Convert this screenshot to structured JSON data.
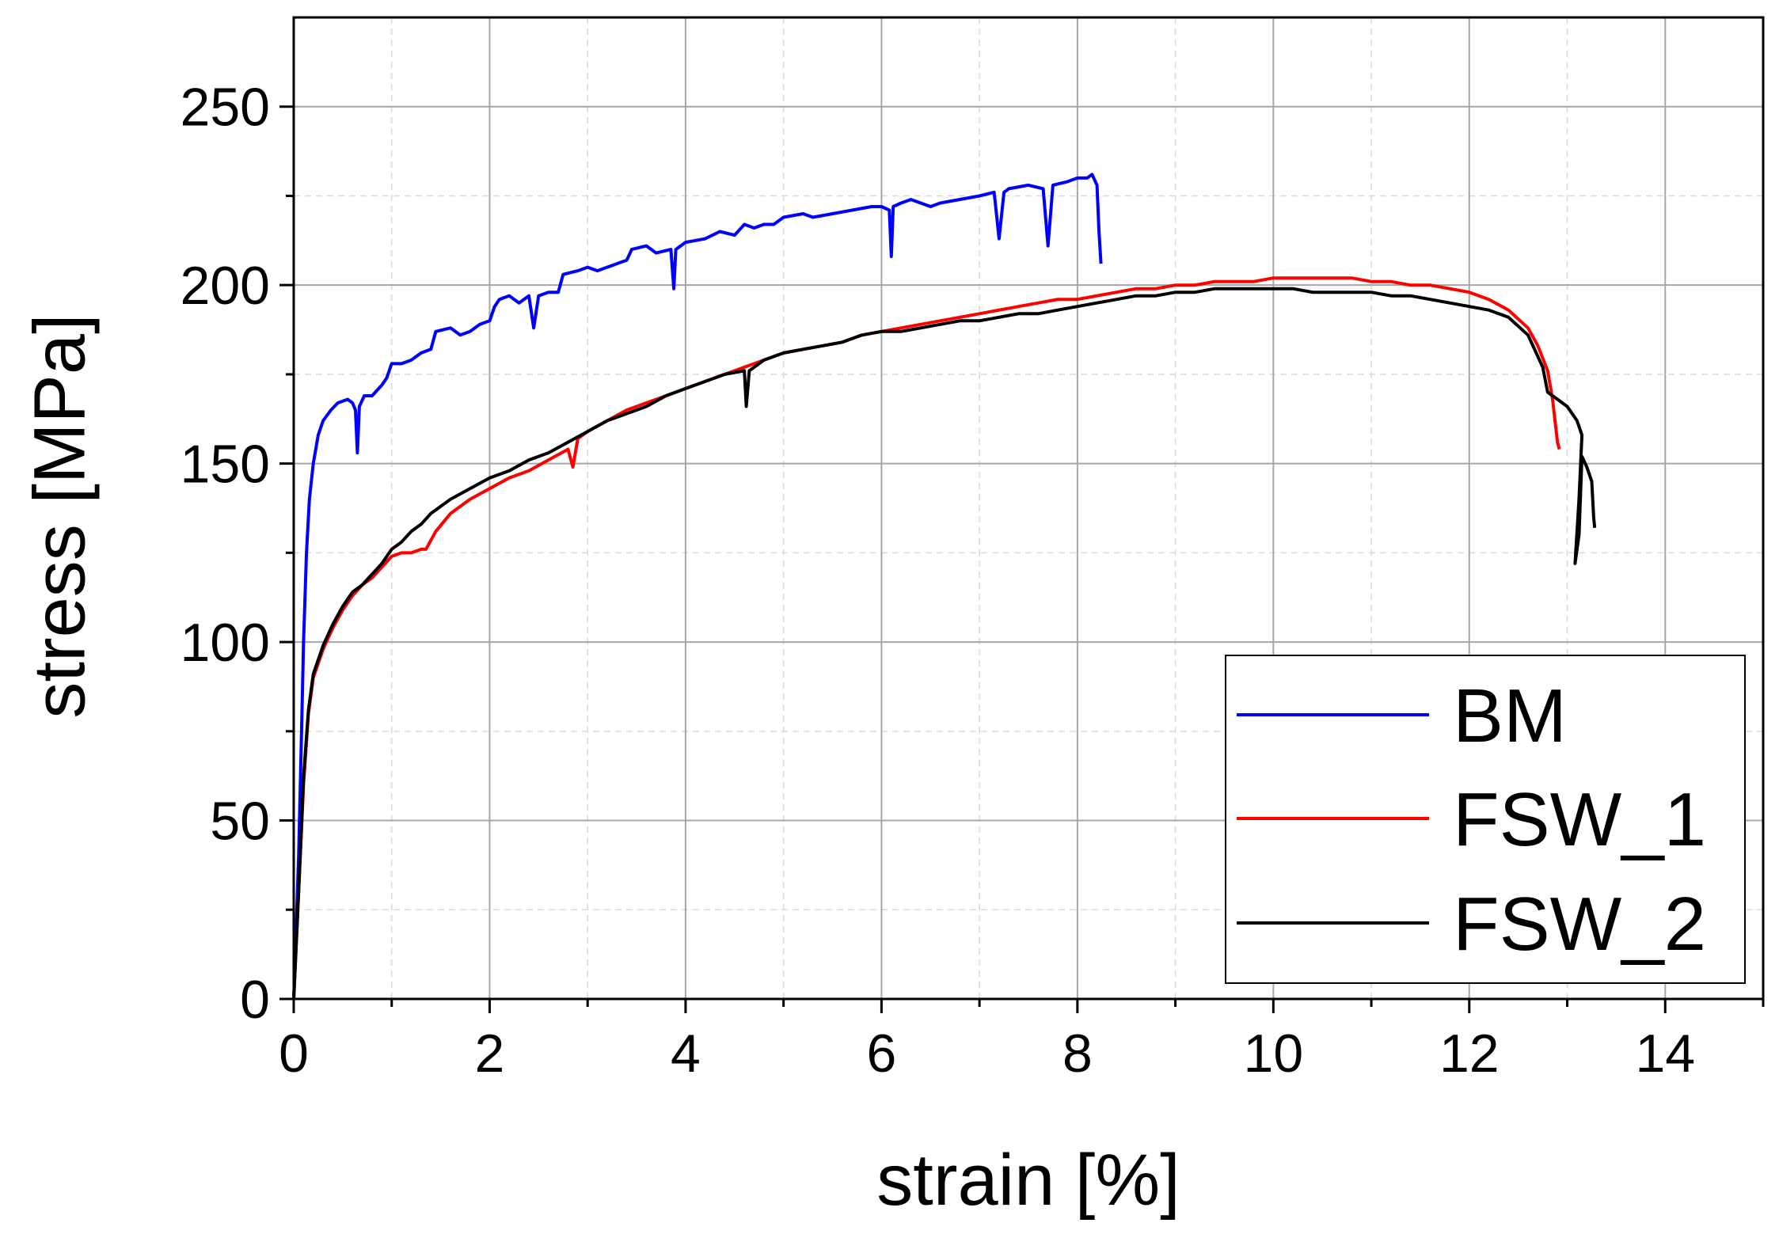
{
  "chart_data": {
    "type": "line",
    "title": "",
    "xlabel": "strain [%]",
    "ylabel": "stress [MPa]",
    "xlim": [
      0,
      15
    ],
    "ylim": [
      0,
      275
    ],
    "x_ticks": [
      0,
      2,
      4,
      6,
      8,
      10,
      12,
      14
    ],
    "y_ticks": [
      0,
      50,
      100,
      150,
      200,
      250
    ],
    "grid": true,
    "legend_position": "bottom-right",
    "series": [
      {
        "name": "BM",
        "color": "#0000ff",
        "points": [
          [
            0,
            0
          ],
          [
            0.05,
            40
          ],
          [
            0.08,
            75
          ],
          [
            0.1,
            100
          ],
          [
            0.13,
            125
          ],
          [
            0.16,
            140
          ],
          [
            0.2,
            150
          ],
          [
            0.25,
            158
          ],
          [
            0.3,
            162
          ],
          [
            0.38,
            165
          ],
          [
            0.45,
            167
          ],
          [
            0.55,
            168
          ],
          [
            0.6,
            167
          ],
          [
            0.63,
            165
          ],
          [
            0.65,
            153
          ],
          [
            0.67,
            166
          ],
          [
            0.72,
            169
          ],
          [
            0.8,
            169
          ],
          [
            0.9,
            172
          ],
          [
            0.95,
            174
          ],
          [
            1.0,
            178
          ],
          [
            1.1,
            178
          ],
          [
            1.2,
            179
          ],
          [
            1.3,
            181
          ],
          [
            1.4,
            182
          ],
          [
            1.45,
            187
          ],
          [
            1.6,
            188
          ],
          [
            1.7,
            186
          ],
          [
            1.8,
            187
          ],
          [
            1.9,
            189
          ],
          [
            2.0,
            190
          ],
          [
            2.05,
            194
          ],
          [
            2.1,
            196
          ],
          [
            2.2,
            197
          ],
          [
            2.3,
            195
          ],
          [
            2.4,
            197
          ],
          [
            2.45,
            188
          ],
          [
            2.5,
            197
          ],
          [
            2.6,
            198
          ],
          [
            2.7,
            198
          ],
          [
            2.75,
            203
          ],
          [
            2.9,
            204
          ],
          [
            3.0,
            205
          ],
          [
            3.1,
            204
          ],
          [
            3.2,
            205
          ],
          [
            3.3,
            206
          ],
          [
            3.4,
            207
          ],
          [
            3.45,
            210
          ],
          [
            3.6,
            211
          ],
          [
            3.7,
            209
          ],
          [
            3.85,
            210
          ],
          [
            3.88,
            199
          ],
          [
            3.9,
            210
          ],
          [
            4.0,
            212
          ],
          [
            4.2,
            213
          ],
          [
            4.35,
            215
          ],
          [
            4.5,
            214
          ],
          [
            4.6,
            217
          ],
          [
            4.7,
            216
          ],
          [
            4.8,
            217
          ],
          [
            4.9,
            217
          ],
          [
            5.0,
            219
          ],
          [
            5.2,
            220
          ],
          [
            5.3,
            219
          ],
          [
            5.5,
            220
          ],
          [
            5.7,
            221
          ],
          [
            5.9,
            222
          ],
          [
            6.0,
            222
          ],
          [
            6.08,
            221
          ],
          [
            6.1,
            208
          ],
          [
            6.12,
            222
          ],
          [
            6.2,
            223
          ],
          [
            6.3,
            224
          ],
          [
            6.4,
            223
          ],
          [
            6.5,
            222
          ],
          [
            6.6,
            223
          ],
          [
            6.8,
            224
          ],
          [
            7.0,
            225
          ],
          [
            7.15,
            226
          ],
          [
            7.2,
            213
          ],
          [
            7.25,
            226
          ],
          [
            7.3,
            227
          ],
          [
            7.5,
            228
          ],
          [
            7.65,
            227
          ],
          [
            7.7,
            211
          ],
          [
            7.75,
            228
          ],
          [
            7.9,
            229
          ],
          [
            8.0,
            230
          ],
          [
            8.1,
            230
          ],
          [
            8.15,
            231
          ],
          [
            8.2,
            228
          ],
          [
            8.22,
            215
          ],
          [
            8.24,
            206
          ]
        ]
      },
      {
        "name": "FSW_1",
        "color": "#ff0000",
        "points": [
          [
            0,
            0
          ],
          [
            0.05,
            30
          ],
          [
            0.1,
            60
          ],
          [
            0.15,
            80
          ],
          [
            0.2,
            90
          ],
          [
            0.3,
            98
          ],
          [
            0.4,
            104
          ],
          [
            0.5,
            109
          ],
          [
            0.6,
            113
          ],
          [
            0.7,
            116
          ],
          [
            0.8,
            118
          ],
          [
            0.9,
            121
          ],
          [
            1.0,
            124
          ],
          [
            1.1,
            125
          ],
          [
            1.2,
            125
          ],
          [
            1.3,
            126
          ],
          [
            1.35,
            126
          ],
          [
            1.45,
            131
          ],
          [
            1.6,
            136
          ],
          [
            1.8,
            140
          ],
          [
            2.0,
            143
          ],
          [
            2.2,
            146
          ],
          [
            2.4,
            148
          ],
          [
            2.6,
            151
          ],
          [
            2.8,
            154
          ],
          [
            2.85,
            149
          ],
          [
            2.9,
            157
          ],
          [
            3.0,
            159
          ],
          [
            3.2,
            162
          ],
          [
            3.4,
            165
          ],
          [
            3.6,
            167
          ],
          [
            3.8,
            169
          ],
          [
            4.0,
            171
          ],
          [
            4.2,
            173
          ],
          [
            4.4,
            175
          ],
          [
            4.6,
            177
          ],
          [
            4.8,
            179
          ],
          [
            5.0,
            181
          ],
          [
            5.2,
            182
          ],
          [
            5.4,
            183
          ],
          [
            5.6,
            184
          ],
          [
            5.8,
            186
          ],
          [
            6.0,
            187
          ],
          [
            6.2,
            188
          ],
          [
            6.4,
            189
          ],
          [
            6.6,
            190
          ],
          [
            6.8,
            191
          ],
          [
            7.0,
            192
          ],
          [
            7.2,
            193
          ],
          [
            7.4,
            194
          ],
          [
            7.6,
            195
          ],
          [
            7.8,
            196
          ],
          [
            8.0,
            196
          ],
          [
            8.2,
            197
          ],
          [
            8.4,
            198
          ],
          [
            8.6,
            199
          ],
          [
            8.8,
            199
          ],
          [
            9.0,
            200
          ],
          [
            9.2,
            200
          ],
          [
            9.4,
            201
          ],
          [
            9.6,
            201
          ],
          [
            9.8,
            201
          ],
          [
            10.0,
            202
          ],
          [
            10.2,
            202
          ],
          [
            10.4,
            202
          ],
          [
            10.6,
            202
          ],
          [
            10.8,
            202
          ],
          [
            11.0,
            201
          ],
          [
            11.2,
            201
          ],
          [
            11.4,
            200
          ],
          [
            11.6,
            200
          ],
          [
            11.8,
            199
          ],
          [
            12.0,
            198
          ],
          [
            12.2,
            196
          ],
          [
            12.4,
            193
          ],
          [
            12.6,
            188
          ],
          [
            12.7,
            183
          ],
          [
            12.8,
            176
          ],
          [
            12.85,
            168
          ],
          [
            12.9,
            156
          ],
          [
            12.92,
            154
          ]
        ]
      },
      {
        "name": "FSW_2",
        "color": "#000000",
        "points": [
          [
            0,
            0
          ],
          [
            0.05,
            30
          ],
          [
            0.1,
            62
          ],
          [
            0.15,
            81
          ],
          [
            0.2,
            91
          ],
          [
            0.3,
            99
          ],
          [
            0.4,
            105
          ],
          [
            0.5,
            110
          ],
          [
            0.6,
            114
          ],
          [
            0.7,
            116
          ],
          [
            0.8,
            119
          ],
          [
            0.9,
            122
          ],
          [
            1.0,
            126
          ],
          [
            1.1,
            128
          ],
          [
            1.2,
            131
          ],
          [
            1.3,
            133
          ],
          [
            1.4,
            136
          ],
          [
            1.6,
            140
          ],
          [
            1.8,
            143
          ],
          [
            2.0,
            146
          ],
          [
            2.2,
            148
          ],
          [
            2.4,
            151
          ],
          [
            2.6,
            153
          ],
          [
            2.8,
            156
          ],
          [
            3.0,
            159
          ],
          [
            3.2,
            162
          ],
          [
            3.4,
            164
          ],
          [
            3.6,
            166
          ],
          [
            3.8,
            169
          ],
          [
            4.0,
            171
          ],
          [
            4.2,
            173
          ],
          [
            4.4,
            175
          ],
          [
            4.6,
            176
          ],
          [
            4.62,
            166
          ],
          [
            4.65,
            176
          ],
          [
            4.8,
            179
          ],
          [
            5.0,
            181
          ],
          [
            5.2,
            182
          ],
          [
            5.4,
            183
          ],
          [
            5.6,
            184
          ],
          [
            5.8,
            186
          ],
          [
            6.0,
            187
          ],
          [
            6.2,
            187
          ],
          [
            6.4,
            188
          ],
          [
            6.6,
            189
          ],
          [
            6.8,
            190
          ],
          [
            7.0,
            190
          ],
          [
            7.2,
            191
          ],
          [
            7.4,
            192
          ],
          [
            7.6,
            192
          ],
          [
            7.8,
            193
          ],
          [
            8.0,
            194
          ],
          [
            8.2,
            195
          ],
          [
            8.4,
            196
          ],
          [
            8.6,
            197
          ],
          [
            8.8,
            197
          ],
          [
            9.0,
            198
          ],
          [
            9.2,
            198
          ],
          [
            9.4,
            199
          ],
          [
            9.6,
            199
          ],
          [
            9.8,
            199
          ],
          [
            10.0,
            199
          ],
          [
            10.2,
            199
          ],
          [
            10.4,
            198
          ],
          [
            10.6,
            198
          ],
          [
            10.8,
            198
          ],
          [
            11.0,
            198
          ],
          [
            11.2,
            197
          ],
          [
            11.4,
            197
          ],
          [
            11.6,
            196
          ],
          [
            11.8,
            195
          ],
          [
            12.0,
            194
          ],
          [
            12.2,
            193
          ],
          [
            12.4,
            191
          ],
          [
            12.6,
            186
          ],
          [
            12.75,
            177
          ],
          [
            12.8,
            170
          ],
          [
            12.9,
            168
          ],
          [
            13.0,
            166
          ],
          [
            13.1,
            162
          ],
          [
            13.15,
            158
          ],
          [
            13.12,
            140
          ],
          [
            13.08,
            122
          ],
          [
            13.12,
            130
          ],
          [
            13.15,
            152
          ],
          [
            13.2,
            149
          ],
          [
            13.25,
            145
          ],
          [
            13.27,
            135
          ],
          [
            13.28,
            132
          ]
        ]
      }
    ]
  }
}
